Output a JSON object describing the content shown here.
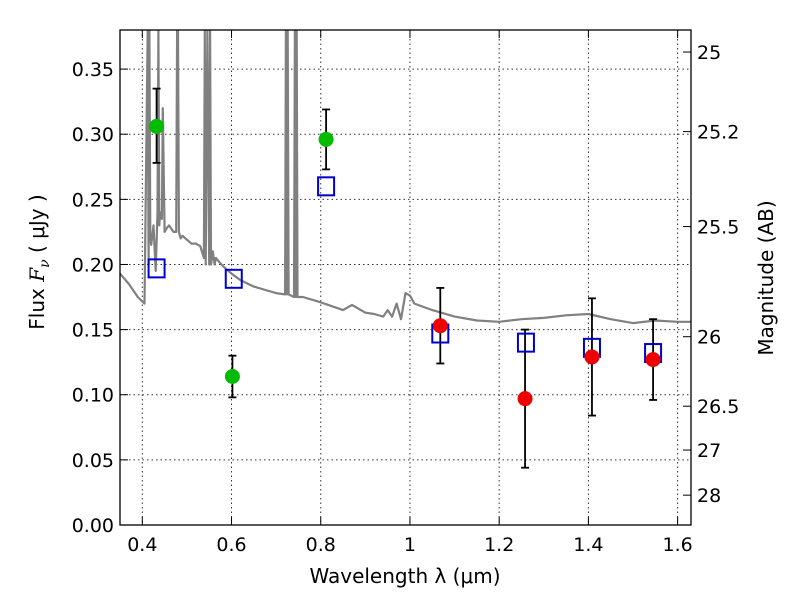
{
  "chart_data": {
    "type": "scatter",
    "xlabel": "Wavelength  λ (μm)",
    "ylabel_prefix": "Flux  ",
    "ylabel_symbol": "F",
    "ylabel_subscript": "ν",
    "ylabel_unit": "  ( μJy )",
    "y2label": "Magnitude (AB)",
    "xlim": [
      0.35,
      1.63
    ],
    "ylim": [
      0.0,
      0.38
    ],
    "x_ticks": [
      0.4,
      0.6,
      0.8,
      1.0,
      1.2,
      1.4,
      1.6
    ],
    "x_tick_labels": [
      "0.4",
      "0.6",
      "0.8",
      "1",
      "1.2",
      "1.4",
      "1.6"
    ],
    "y_ticks": [
      0.0,
      0.05,
      0.1,
      0.15,
      0.2,
      0.25,
      0.3,
      0.35
    ],
    "y_tick_labels": [
      "0.00",
      "0.05",
      "0.10",
      "0.15",
      "0.20",
      "0.25",
      "0.30",
      "0.35"
    ],
    "y2_tick_labels": [
      "25",
      "25.2",
      "25.5",
      "26",
      "26.5",
      "27",
      "28"
    ],
    "grid": true,
    "colors": {
      "model_line": "#808080",
      "green_points": "#00bb00",
      "red_points": "#ee0000",
      "model_photometry": "#0000cc",
      "error_bars": "#000000"
    },
    "series": [
      {
        "marker": "line",
        "x": [
          0.35,
          0.37,
          0.39,
          0.405,
          0.412,
          0.414,
          0.416,
          0.418,
          0.42,
          0.425,
          0.43,
          0.434,
          0.436,
          0.438,
          0.44,
          0.442,
          0.444,
          0.446,
          0.45,
          0.455,
          0.46,
          0.47,
          0.476,
          0.478,
          0.48,
          0.482,
          0.486,
          0.49,
          0.5,
          0.51,
          0.52,
          0.53,
          0.538,
          0.54,
          0.542,
          0.546,
          0.55,
          0.552,
          0.554,
          0.558,
          0.562,
          0.565,
          0.57,
          0.58,
          0.6,
          0.62,
          0.65,
          0.68,
          0.7,
          0.72,
          0.722,
          0.724,
          0.726,
          0.728,
          0.74,
          0.742,
          0.744,
          0.746,
          0.748,
          0.76,
          0.8,
          0.85,
          0.87,
          0.9,
          0.92,
          0.94,
          0.95,
          0.96,
          0.97,
          0.98,
          0.99,
          1.0,
          1.01,
          1.05,
          1.1,
          1.15,
          1.2,
          1.25,
          1.3,
          1.35,
          1.4,
          1.45,
          1.5,
          1.55,
          1.6,
          1.63
        ],
        "y": [
          0.193,
          0.185,
          0.175,
          0.17,
          0.38,
          0.2,
          0.38,
          0.22,
          0.215,
          0.23,
          0.195,
          0.24,
          0.38,
          0.23,
          0.24,
          0.236,
          0.235,
          0.32,
          0.225,
          0.228,
          0.23,
          0.225,
          0.225,
          0.38,
          0.38,
          0.225,
          0.22,
          0.222,
          0.219,
          0.216,
          0.216,
          0.214,
          0.205,
          0.38,
          0.2,
          0.38,
          0.2,
          0.38,
          0.2,
          0.21,
          0.2,
          0.205,
          0.203,
          0.199,
          0.193,
          0.188,
          0.183,
          0.18,
          0.178,
          0.177,
          0.38,
          0.177,
          0.38,
          0.177,
          0.175,
          0.38,
          0.175,
          0.38,
          0.175,
          0.175,
          0.171,
          0.165,
          0.169,
          0.163,
          0.162,
          0.16,
          0.165,
          0.16,
          0.17,
          0.158,
          0.178,
          0.176,
          0.17,
          0.165,
          0.16,
          0.157,
          0.156,
          0.158,
          0.159,
          0.161,
          0.162,
          0.158,
          0.155,
          0.157,
          0.156,
          0.156
        ]
      },
      {
        "marker": "circle",
        "color": "green",
        "x": [
          0.432,
          0.602,
          0.812
        ],
        "y": [
          0.306,
          0.114,
          0.296
        ],
        "err_low": [
          0.028,
          0.016,
          0.023
        ],
        "err_high": [
          0.029,
          0.016,
          0.023
        ]
      },
      {
        "marker": "circle",
        "color": "red",
        "x": [
          1.068,
          1.258,
          1.408,
          1.545
        ],
        "y": [
          0.153,
          0.097,
          0.129,
          0.127
        ],
        "err_low": [
          0.029,
          0.053,
          0.045,
          0.031
        ],
        "err_high": [
          0.029,
          0.053,
          0.045,
          0.031
        ]
      },
      {
        "marker": "open-square",
        "color": "blue",
        "x": [
          0.432,
          0.605,
          0.812,
          1.068,
          1.26,
          1.408,
          1.545
        ],
        "y": [
          0.197,
          0.189,
          0.26,
          0.147,
          0.14,
          0.136,
          0.132
        ]
      }
    ]
  }
}
